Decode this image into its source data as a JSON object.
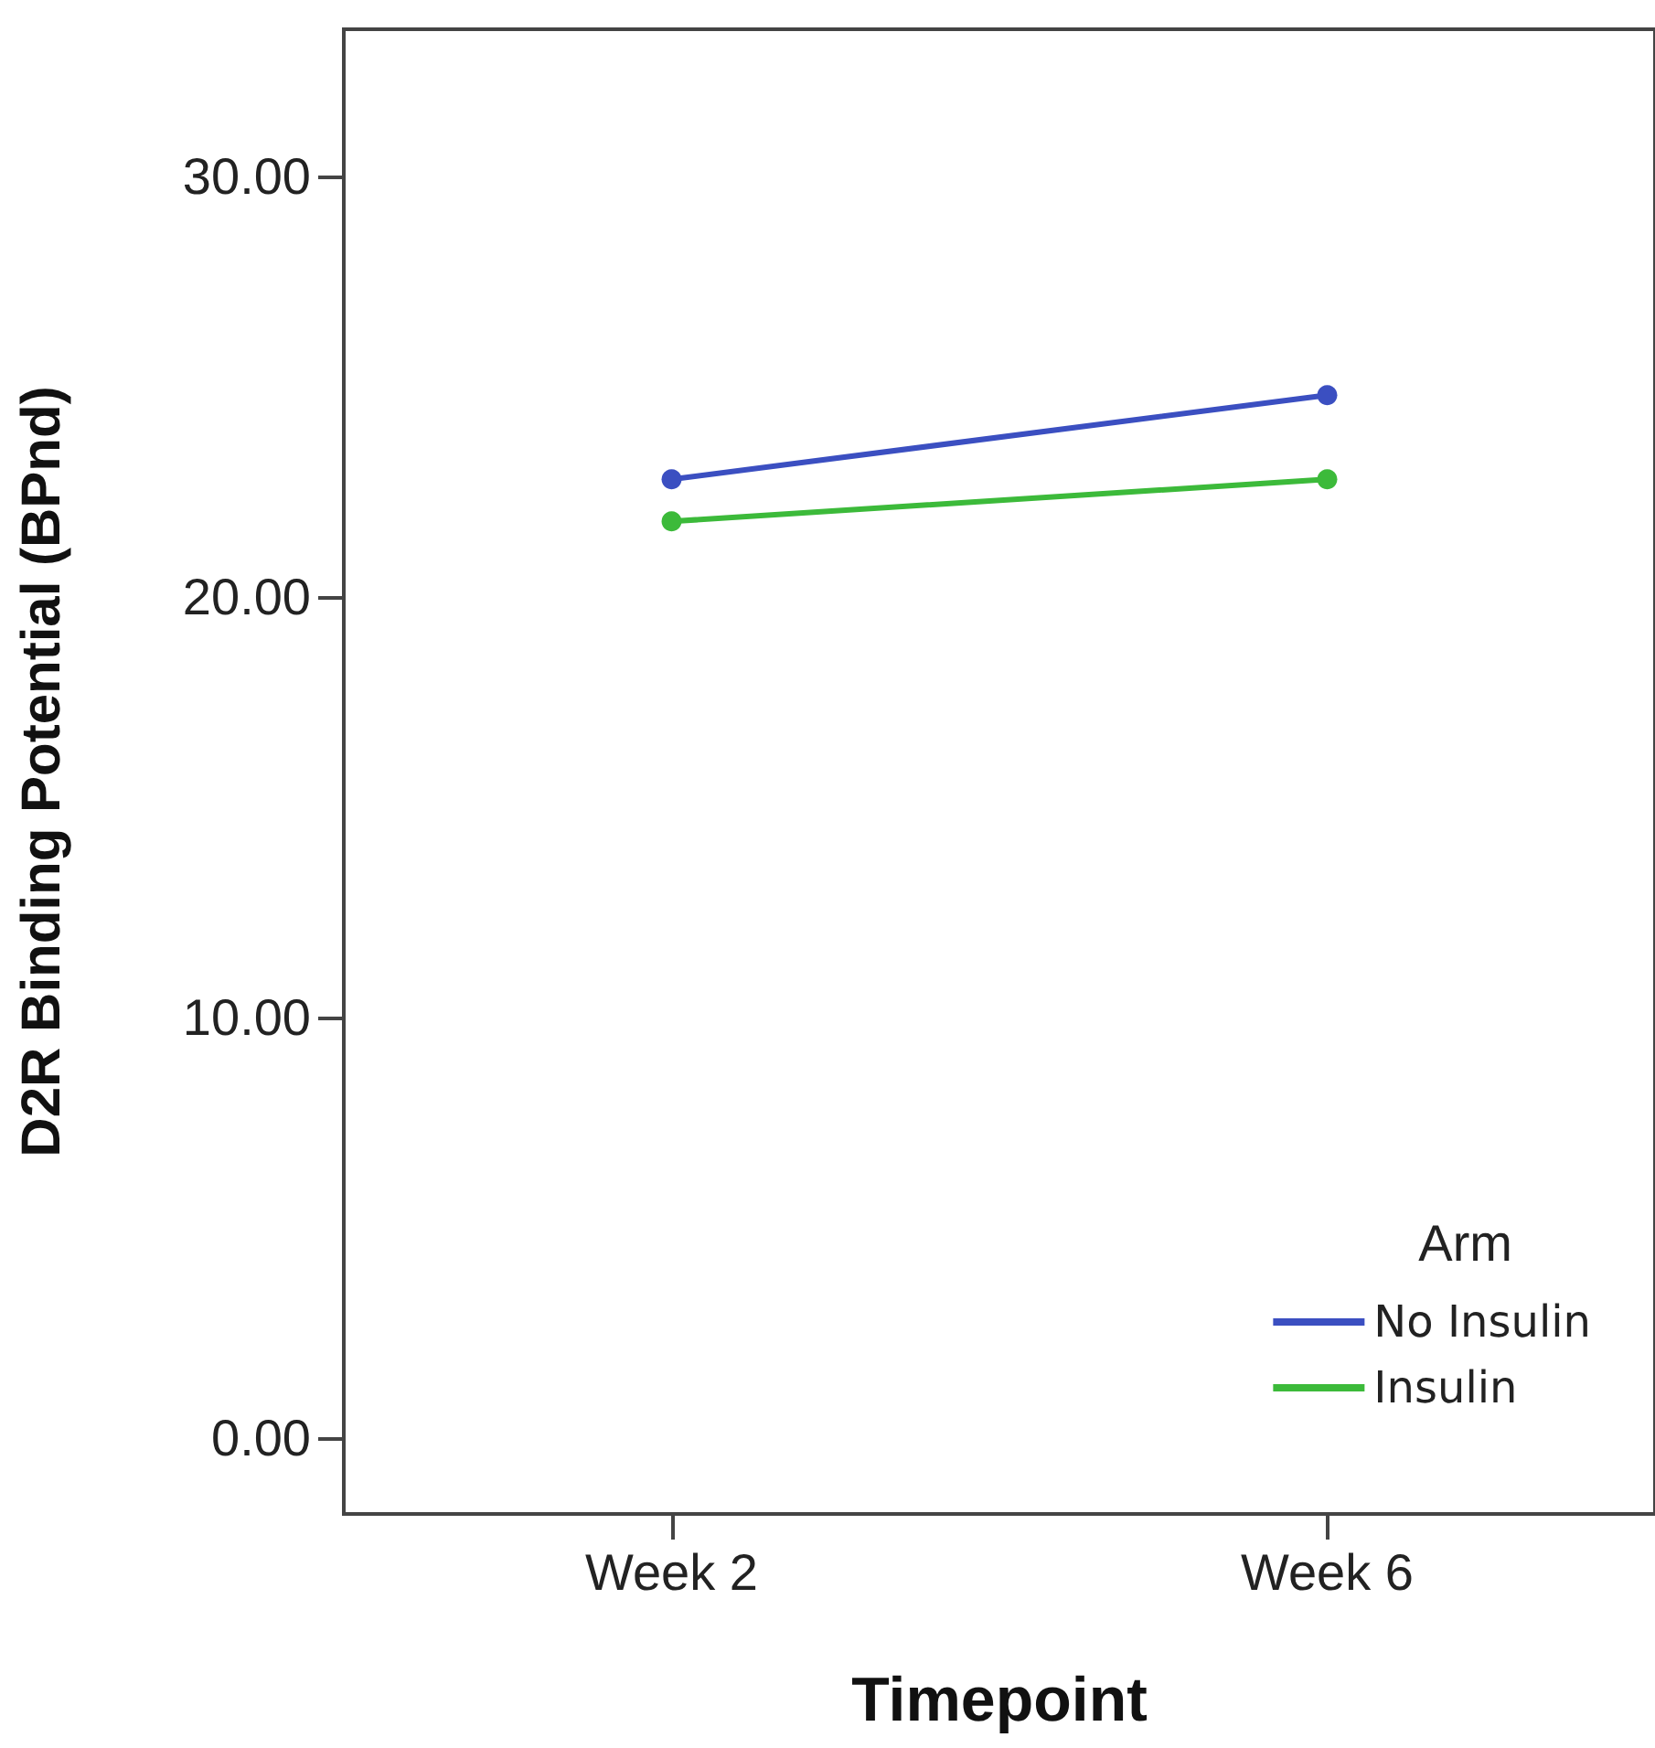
{
  "chart_data": {
    "type": "line",
    "xlabel": "Timepoint",
    "ylabel": "D2R Binding Potential (BPnd)",
    "legend_title": "Arm",
    "categories": [
      "Week 2",
      "Week 6"
    ],
    "series": [
      {
        "name": "No Insulin",
        "color": "#3b4fc1",
        "values": [
          22.8,
          24.8
        ]
      },
      {
        "name": "Insulin",
        "color": "#3cba3a",
        "values": [
          21.8,
          22.8
        ]
      }
    ],
    "ylim": [
      -1.8,
      33.5
    ],
    "yticks": [
      {
        "value": 0,
        "label": "0.00"
      },
      {
        "value": 10,
        "label": "10.00"
      },
      {
        "value": 20,
        "label": "20.00"
      },
      {
        "value": 30,
        "label": "30.00"
      }
    ],
    "grid": false,
    "legend": "bottom right",
    "marker": "circle",
    "line_style": "solid"
  }
}
